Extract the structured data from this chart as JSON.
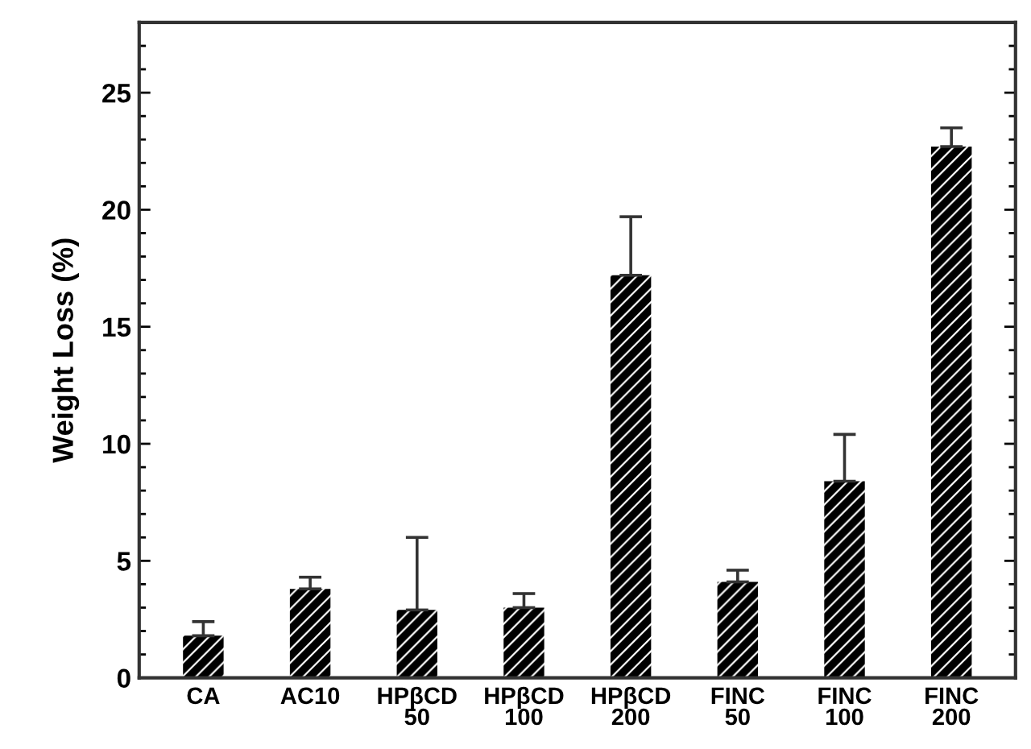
{
  "chart_data": {
    "type": "bar",
    "ylabel": "Weight Loss (%)",
    "categories": [
      "CA",
      "AC10",
      "HPβCD\n50",
      "HPβCD\n100",
      "HPβCD\n200",
      "FINC\n50",
      "FINC\n100",
      "FINC\n200"
    ],
    "values": [
      1.8,
      3.8,
      2.9,
      3.0,
      17.2,
      4.1,
      8.4,
      22.7
    ],
    "errors": [
      [
        1.8,
        2.4
      ],
      [
        3.8,
        4.3
      ],
      [
        2.9,
        6.0
      ],
      [
        3.0,
        3.6
      ],
      [
        17.2,
        19.7
      ],
      [
        4.1,
        4.6
      ],
      [
        8.4,
        10.4
      ],
      [
        22.7,
        23.5
      ]
    ],
    "color": "#000000",
    "ylim": [
      0,
      28
    ],
    "yticks": [
      0,
      5,
      10,
      15,
      20,
      25
    ],
    "grid": false
  }
}
